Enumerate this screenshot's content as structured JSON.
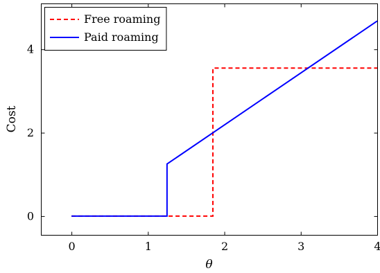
{
  "chart_data": {
    "type": "line",
    "title": "",
    "xlabel": "θ",
    "ylabel": "Cost",
    "xlim": [
      -0.4,
      4.0
    ],
    "ylim": [
      -0.45,
      5.1
    ],
    "x_ticks": [
      0,
      1,
      2,
      3,
      4
    ],
    "y_ticks": [
      0,
      2,
      4
    ],
    "grid": false,
    "legend_position": "top-left",
    "series": [
      {
        "name": "Free roaming",
        "color": "#ff0000",
        "style": "dashed",
        "points": [
          [
            0,
            0
          ],
          [
            1.85,
            0
          ],
          [
            1.85,
            3.55
          ],
          [
            4.0,
            3.55
          ]
        ]
      },
      {
        "name": "Paid roaming",
        "color": "#0000ff",
        "style": "solid",
        "points": [
          [
            0,
            0
          ],
          [
            1.25,
            0
          ],
          [
            1.25,
            1.25
          ],
          [
            4.0,
            4.68
          ]
        ]
      }
    ]
  }
}
